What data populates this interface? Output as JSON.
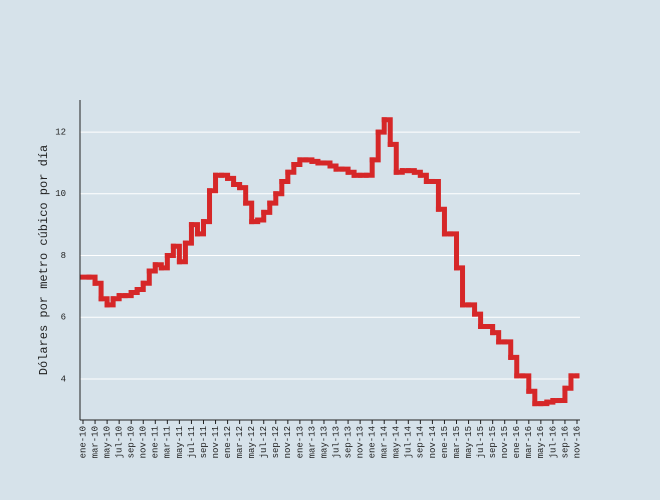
{
  "chart_data": {
    "type": "line",
    "line_shape": "hv",
    "y_label": "Dólares por metro cúbico por día",
    "categories": [
      "ene-10",
      null,
      "mar-10",
      null,
      "may-10",
      null,
      "jul-10",
      null,
      "sep-10",
      null,
      "nov-10",
      null,
      "ene-11",
      null,
      "mar-11",
      null,
      "may-11",
      null,
      "jul-11",
      null,
      "sep-11",
      null,
      "nov-11",
      null,
      "ene-12",
      null,
      "mar-12",
      null,
      "may-12",
      null,
      "jul-12",
      null,
      "sep-12",
      null,
      "nov-12",
      null,
      "ene-13",
      null,
      "mar-13",
      null,
      "may-13",
      null,
      "jul-13",
      null,
      "sep-13",
      null,
      "nov-13",
      null,
      "ene-14",
      null,
      "mar-14",
      null,
      "may-14",
      null,
      "jul-14",
      null,
      "sep-14",
      null,
      "nov-14",
      null,
      "ene-15",
      null,
      "mar-15",
      null,
      "may-15",
      null,
      "jul-15",
      null,
      "sep-15",
      null,
      "nov-15",
      null,
      "ene-16",
      null,
      "mar-16",
      null,
      "may-16",
      null,
      "jul-16",
      null,
      "sep-16",
      null,
      "nov-16"
    ],
    "values": [
      7.3,
      7.3,
      7.1,
      6.6,
      6.4,
      6.6,
      6.7,
      6.7,
      6.8,
      6.9,
      7.1,
      7.5,
      7.7,
      7.6,
      8.0,
      8.3,
      7.8,
      8.4,
      9.0,
      8.7,
      9.1,
      10.1,
      10.6,
      10.6,
      10.5,
      10.3,
      10.2,
      9.7,
      9.1,
      9.15,
      9.4,
      9.7,
      10.0,
      10.4,
      10.7,
      10.95,
      11.1,
      11.1,
      11.05,
      11.0,
      11.0,
      10.9,
      10.8,
      10.8,
      10.7,
      10.6,
      10.6,
      10.6,
      11.1,
      12.0,
      12.4,
      11.6,
      10.7,
      10.75,
      10.75,
      10.7,
      10.6,
      10.4,
      10.4,
      9.5,
      8.7,
      8.7,
      7.6,
      6.4,
      6.4,
      6.1,
      5.7,
      5.7,
      5.5,
      5.2,
      5.2,
      4.7,
      4.1,
      4.1,
      3.6,
      3.2,
      3.2,
      3.25,
      3.3,
      3.3,
      3.7,
      4.1,
      4.1
    ],
    "color": "#d62728",
    "ylim": [
      2.67,
      13.04
    ],
    "yticks": [
      4,
      6,
      8,
      10,
      12
    ],
    "grid": true
  }
}
